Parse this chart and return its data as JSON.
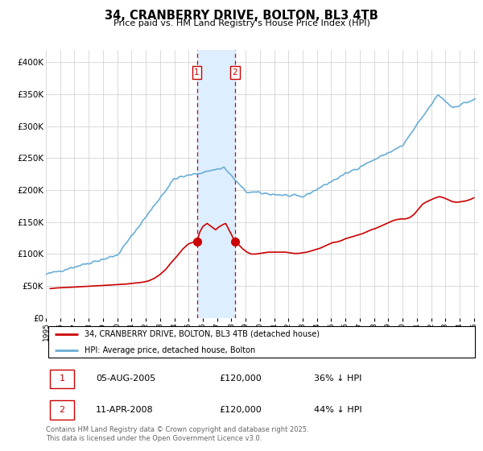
{
  "title": "34, CRANBERRY DRIVE, BOLTON, BL3 4TB",
  "subtitle": "Price paid vs. HM Land Registry's House Price Index (HPI)",
  "ylim": [
    0,
    420000
  ],
  "yticks": [
    0,
    50000,
    100000,
    150000,
    200000,
    250000,
    300000,
    350000,
    400000
  ],
  "hpi_color": "#6aaed6",
  "price_color": "#cc0000",
  "shaded_color": "#ddeeff",
  "legend_entry1": "34, CRANBERRY DRIVE, BOLTON, BL3 4TB (detached house)",
  "legend_entry2": "HPI: Average price, detached house, Bolton",
  "table_row1": [
    "1",
    "05-AUG-2005",
    "£120,000",
    "36% ↓ HPI"
  ],
  "table_row2": [
    "2",
    "11-APR-2008",
    "£120,000",
    "44% ↓ HPI"
  ],
  "footnote": "Contains HM Land Registry data © Crown copyright and database right 2025.\nThis data is licensed under the Open Government Licence v3.0.",
  "background_color": "#ffffff",
  "vline1_x": 2005.58,
  "vline2_x": 2008.25,
  "xmin": 1995,
  "xmax": 2025.3
}
